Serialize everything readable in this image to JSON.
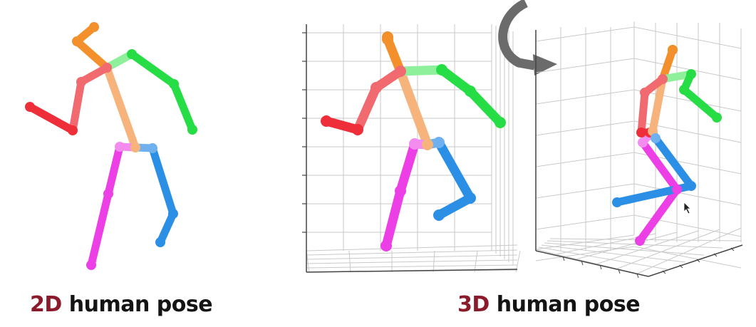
{
  "captions": {
    "left": {
      "highlight": "2D",
      "rest": " human pose"
    },
    "right": {
      "highlight": "3D",
      "rest": " human pose"
    }
  },
  "colors": {
    "caption_highlight": "#8b1a2b",
    "caption_text": "#141414",
    "head": "#f4902c",
    "spine": "#f6b47c",
    "right_arm": "#ee2f3a",
    "right_arm_upper": "#f06a70",
    "left_arm": "#26dd46",
    "left_arm_upper": "#8ff09c",
    "right_leg": "#ec3fe6",
    "right_leg_upper": "#f48cf0",
    "left_leg": "#2b8fe6",
    "left_leg_upper": "#6fb1ee",
    "grid": "#c9c9c9",
    "rotate_arrow": "#6b6b6b"
  },
  "icons": {
    "rotate": "curved-rotate-arrow-icon",
    "cursor": "mouse-cursor-icon"
  }
}
